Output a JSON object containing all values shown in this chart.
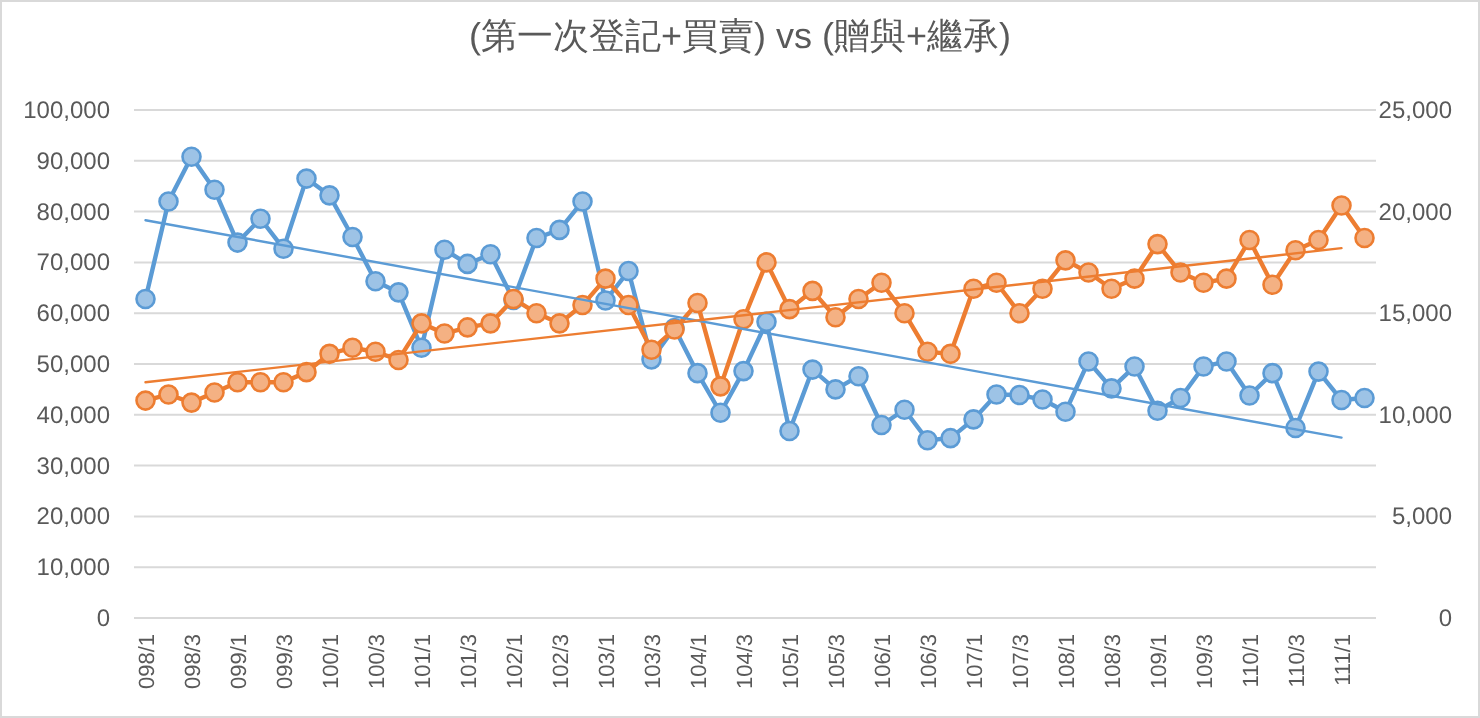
{
  "chart_data": {
    "type": "line",
    "title": "(第一次登記+買賣) vs (贈與+繼承)",
    "categories": [
      "098/1",
      null,
      "098/3",
      null,
      "099/1",
      null,
      "099/3",
      null,
      "100/1",
      null,
      "100/3",
      null,
      "101/1",
      null,
      "101/3",
      null,
      "102/1",
      null,
      "102/3",
      null,
      "103/1",
      null,
      "103/3",
      null,
      "104/1",
      null,
      "104/3",
      null,
      "105/1",
      null,
      "105/3",
      null,
      "106/1",
      null,
      "106/3",
      null,
      "107/1",
      null,
      "107/3",
      null,
      "108/1",
      null,
      "108/3",
      null,
      "109/1",
      null,
      "109/3",
      null,
      "110/1",
      null,
      "110/3",
      null,
      "111/1",
      null
    ],
    "ylim": [
      0,
      100000
    ],
    "yticks": [
      {
        "value": 0,
        "label": "0"
      },
      {
        "value": 10000,
        "label": "10,000"
      },
      {
        "value": 20000,
        "label": "20,000"
      },
      {
        "value": 30000,
        "label": "30,000"
      },
      {
        "value": 40000,
        "label": "40,000"
      },
      {
        "value": 50000,
        "label": "50,000"
      },
      {
        "value": 60000,
        "label": "60,000"
      },
      {
        "value": 70000,
        "label": "70,000"
      },
      {
        "value": 80000,
        "label": "80,000"
      },
      {
        "value": 90000,
        "label": "90,000"
      },
      {
        "value": 100000,
        "label": "100,000"
      }
    ],
    "y2lim": [
      0,
      25000
    ],
    "y2ticks": [
      {
        "value": 0,
        "label": "0"
      },
      {
        "value": 5000,
        "label": "5,000"
      },
      {
        "value": 10000,
        "label": "10,000"
      },
      {
        "value": 15000,
        "label": "15,000"
      },
      {
        "value": 20000,
        "label": "20,000"
      },
      {
        "value": 25000,
        "label": "25,000"
      }
    ],
    "grid": "y",
    "marker": "circle",
    "series": [
      {
        "color": "#5b9bd5",
        "values": [
          62800,
          82000,
          90800,
          84300,
          73900,
          78600,
          72700,
          86500,
          83200,
          75000,
          66300,
          64100,
          53200,
          72500,
          69700,
          71600,
          62600,
          74800,
          76400,
          82000,
          62500,
          68300,
          50900,
          57100,
          48200,
          40400,
          48600,
          58300,
          36800,
          48900,
          45000,
          47600,
          38000,
          41000,
          35000,
          35400,
          39100,
          44000,
          43900,
          43000,
          40600,
          50500,
          45200,
          49500,
          40800,
          43300,
          49500,
          50500,
          43800,
          48200,
          37400,
          48500,
          42900,
          43300
        ]
      },
      {
        "color": "#ed7d31",
        "axis": "y2",
        "values": [
          10700,
          11000,
          10600,
          11100,
          11600,
          11600,
          11600,
          12100,
          13000,
          13300,
          13100,
          12700,
          14500,
          14000,
          14300,
          14500,
          15700,
          15000,
          14500,
          15400,
          16700,
          15400,
          13200,
          14200,
          15500,
          11400,
          14700,
          17500,
          15200,
          16100,
          14800,
          15700,
          16500,
          15000,
          13100,
          13000,
          16200,
          16500,
          15000,
          16200,
          17600,
          17000,
          16200,
          16700,
          18400,
          17000,
          16500,
          16700,
          18600,
          16400,
          18100,
          18600,
          20300,
          18700
        ]
      },
      {
        "type": "line",
        "marker": "none",
        "color": "#5b9bd5",
        "x": [
          "098/1",
          "111/1"
        ],
        "values": [
          78300,
          35500
        ]
      },
      {
        "type": "line",
        "marker": "none",
        "color": "#ed7d31",
        "axis": "y2",
        "x": [
          "098/1",
          "111/1"
        ],
        "values": [
          11600,
          18200
        ]
      }
    ]
  }
}
